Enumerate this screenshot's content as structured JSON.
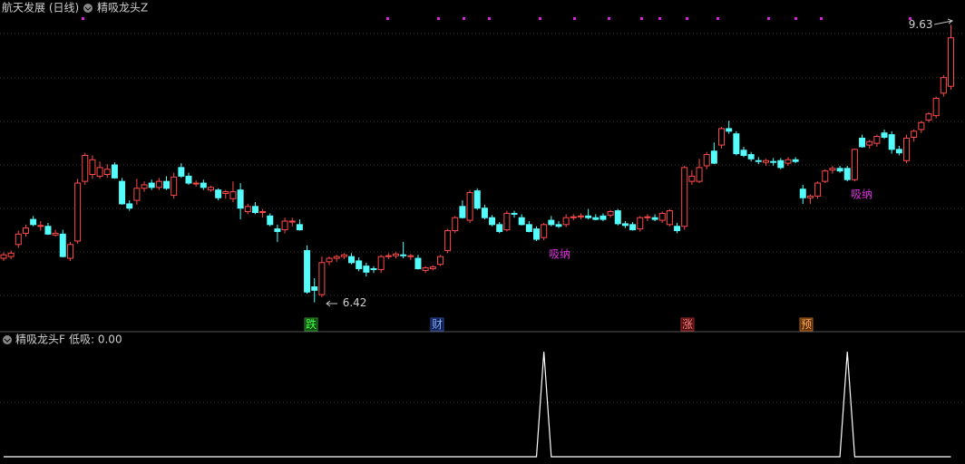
{
  "header": {
    "title": "航天发展 (日线)",
    "indicator": "精吸龙头Z"
  },
  "chart_data": [
    {
      "type": "candlestick",
      "open": [
        6.93,
        6.95,
        7.09,
        7.22,
        7.38,
        7.3,
        7.3,
        7.2,
        7.21,
        6.93,
        7.13,
        7.82,
        7.9,
        7.88,
        7.9,
        8.01,
        7.82,
        7.56,
        7.6,
        7.74,
        7.8,
        7.75,
        7.82,
        7.66,
        7.98,
        7.88,
        7.79,
        7.8,
        7.72,
        7.72,
        7.68,
        7.62,
        7.72,
        7.47,
        7.53,
        7.46,
        7.42,
        7.27,
        7.26,
        7.35,
        7.32,
        7.02,
        6.6,
        6.51,
        6.89,
        6.93,
        6.95,
        6.95,
        6.9,
        6.84,
        6.81,
        6.8,
        6.95,
        6.96,
        6.97,
        6.95,
        6.93,
        6.79,
        6.81,
        6.86,
        7.02,
        7.25,
        7.53,
        7.37,
        7.71,
        7.51,
        7.4,
        7.32,
        7.26,
        7.45,
        7.4,
        7.32,
        7.27,
        7.17,
        7.37,
        7.32,
        7.32,
        7.4,
        7.41,
        7.42,
        7.4,
        7.42,
        7.43,
        7.48,
        7.33,
        7.32,
        7.27,
        7.4,
        7.4,
        7.37,
        7.32,
        7.3,
        7.3,
        7.82,
        7.82,
        8.0,
        8.17,
        8.24,
        8.43,
        8.37,
        8.18,
        8.13,
        8.06,
        8.04,
        8.05,
        8.06,
        8.03,
        8.07,
        7.73,
        7.63,
        7.65,
        7.82,
        7.95,
        7.97,
        7.97,
        7.84,
        8.32,
        8.24,
        8.26,
        8.38,
        8.36,
        8.19,
        8.06,
        8.33,
        8.42,
        8.53,
        8.58,
        8.84,
        8.92
      ],
      "high": [
        7.0,
        7.02,
        7.25,
        7.32,
        7.42,
        7.36,
        7.34,
        7.26,
        7.26,
        7.12,
        7.85,
        8.15,
        8.12,
        8.05,
        8.02,
        8.04,
        7.86,
        7.6,
        7.85,
        7.82,
        7.84,
        7.86,
        7.88,
        7.92,
        8.03,
        7.92,
        7.83,
        7.84,
        7.77,
        7.74,
        7.72,
        7.82,
        7.8,
        7.56,
        7.58,
        7.5,
        7.45,
        7.32,
        7.4,
        7.4,
        7.38,
        7.08,
        6.7,
        6.95,
        6.95,
        6.97,
        6.99,
        6.99,
        6.94,
        6.88,
        6.84,
        6.97,
        6.99,
        7.0,
        7.12,
        6.98,
        6.97,
        6.84,
        6.85,
        6.97,
        7.27,
        7.42,
        7.6,
        7.72,
        7.74,
        7.55,
        7.43,
        7.35,
        7.48,
        7.48,
        7.44,
        7.36,
        7.3,
        7.34,
        7.42,
        7.36,
        7.44,
        7.44,
        7.45,
        7.5,
        7.44,
        7.45,
        7.49,
        7.5,
        7.36,
        7.35,
        7.42,
        7.44,
        7.44,
        7.47,
        7.5,
        7.34,
        8.0,
        7.95,
        8.08,
        8.16,
        8.27,
        8.45,
        8.52,
        8.4,
        8.22,
        8.16,
        8.1,
        8.08,
        8.09,
        8.09,
        8.1,
        8.1,
        7.78,
        7.67,
        7.82,
        7.96,
        8.0,
        8.0,
        8.0,
        8.2,
        8.36,
        8.3,
        8.36,
        8.42,
        8.4,
        8.23,
        8.36,
        8.42,
        8.52,
        8.62,
        8.8,
        9.05,
        9.63
      ],
      "low": [
        6.9,
        6.92,
        7.05,
        7.18,
        7.3,
        7.25,
        7.2,
        7.18,
        6.94,
        6.9,
        7.1,
        7.78,
        7.85,
        7.85,
        7.86,
        7.85,
        7.55,
        7.48,
        7.55,
        7.7,
        7.72,
        7.72,
        7.72,
        7.62,
        7.86,
        7.78,
        7.76,
        7.72,
        7.7,
        7.6,
        7.62,
        7.58,
        7.38,
        7.44,
        7.44,
        7.4,
        7.3,
        7.12,
        7.22,
        7.3,
        7.25,
        6.52,
        6.42,
        6.48,
        6.85,
        6.89,
        6.92,
        6.86,
        6.78,
        6.72,
        6.76,
        6.76,
        6.92,
        6.93,
        6.93,
        6.91,
        6.8,
        6.76,
        6.79,
        6.84,
        6.99,
        7.22,
        7.39,
        7.34,
        7.49,
        7.38,
        7.3,
        7.22,
        7.24,
        7.4,
        7.31,
        7.23,
        7.13,
        7.14,
        7.3,
        7.28,
        7.29,
        7.37,
        7.38,
        7.38,
        7.37,
        7.36,
        7.4,
        7.31,
        7.28,
        7.25,
        7.24,
        7.36,
        7.36,
        7.34,
        7.3,
        7.22,
        7.26,
        7.78,
        7.8,
        7.96,
        8.02,
        8.2,
        8.37,
        8.12,
        8.1,
        8.05,
        8.02,
        8.0,
        8.0,
        7.96,
        8.0,
        8.03,
        7.56,
        7.56,
        7.62,
        7.8,
        7.91,
        7.92,
        7.82,
        7.82,
        8.21,
        8.2,
        8.22,
        8.31,
        8.14,
        8.12,
        8.03,
        8.28,
        8.38,
        8.5,
        8.55,
        8.8,
        8.88
      ],
      "close": [
        6.97,
        6.99,
        7.21,
        7.28,
        7.32,
        7.31,
        7.21,
        7.22,
        6.95,
        7.09,
        7.8,
        8.12,
        8.07,
        7.98,
        7.96,
        7.86,
        7.56,
        7.51,
        7.74,
        7.78,
        7.75,
        7.82,
        7.74,
        7.87,
        7.88,
        7.8,
        7.8,
        7.75,
        7.75,
        7.63,
        7.7,
        7.7,
        7.51,
        7.53,
        7.46,
        7.47,
        7.32,
        7.24,
        7.36,
        7.36,
        7.26,
        6.54,
        6.56,
        6.88,
        6.93,
        6.95,
        6.97,
        6.88,
        6.81,
        6.77,
        6.8,
        6.95,
        6.96,
        6.98,
        6.96,
        6.96,
        6.81,
        6.82,
        6.83,
        6.95,
        7.25,
        7.4,
        7.4,
        7.69,
        7.51,
        7.4,
        7.32,
        7.24,
        7.45,
        7.44,
        7.32,
        7.24,
        7.15,
        7.32,
        7.32,
        7.3,
        7.4,
        7.41,
        7.42,
        7.4,
        7.38,
        7.38,
        7.47,
        7.33,
        7.31,
        7.26,
        7.4,
        7.41,
        7.38,
        7.45,
        7.48,
        7.25,
        7.98,
        7.88,
        7.98,
        8.13,
        8.03,
        8.43,
        8.4,
        8.14,
        8.12,
        8.08,
        8.05,
        8.06,
        8.04,
        7.98,
        8.07,
        8.05,
        7.63,
        7.65,
        7.8,
        7.94,
        7.97,
        7.94,
        7.84,
        8.19,
        8.22,
        8.28,
        8.34,
        8.33,
        8.19,
        8.15,
        8.32,
        8.4,
        8.5,
        8.6,
        8.78,
        9.02,
        9.48
      ],
      "ylim": [
        6.27,
        9.75
      ],
      "up_color": "#ff4a4a",
      "down_color": "#54fcfc"
    },
    {
      "type": "line",
      "title": "精吸龙头F",
      "label": "低吸: 0.00",
      "values": [
        0,
        0,
        0,
        0,
        0,
        0,
        0,
        0,
        0,
        0,
        0,
        0,
        0,
        0,
        0,
        0,
        0,
        0,
        0,
        0,
        0,
        0,
        0,
        0,
        0,
        0,
        0,
        0,
        0,
        0,
        0,
        0,
        0,
        0,
        0,
        0,
        0,
        0,
        0,
        0,
        0,
        0,
        0,
        0,
        0,
        0,
        0,
        0,
        0,
        0,
        0,
        0,
        0,
        0,
        0,
        0,
        0,
        0,
        0,
        0,
        0,
        0,
        0,
        0,
        0,
        0,
        0,
        0,
        0,
        0,
        0,
        0,
        0,
        1,
        0,
        0,
        0,
        0,
        0,
        0,
        0,
        0,
        0,
        0,
        0,
        0,
        0,
        0,
        0,
        0,
        0,
        0,
        0,
        0,
        0,
        0,
        0,
        0,
        0,
        0,
        0,
        0,
        0,
        0,
        0,
        0,
        0,
        0,
        0,
        0,
        0,
        0,
        0,
        0,
        1,
        0,
        0,
        0,
        0,
        0,
        0,
        0,
        0,
        0,
        0,
        0,
        0,
        0,
        0
      ],
      "ylim": [
        0,
        1.07
      ],
      "color": "#ffffff"
    }
  ],
  "annotations": [
    "吸纳",
    "吸纳"
  ],
  "events": [
    "跌",
    "财",
    "涨",
    "预"
  ]
}
